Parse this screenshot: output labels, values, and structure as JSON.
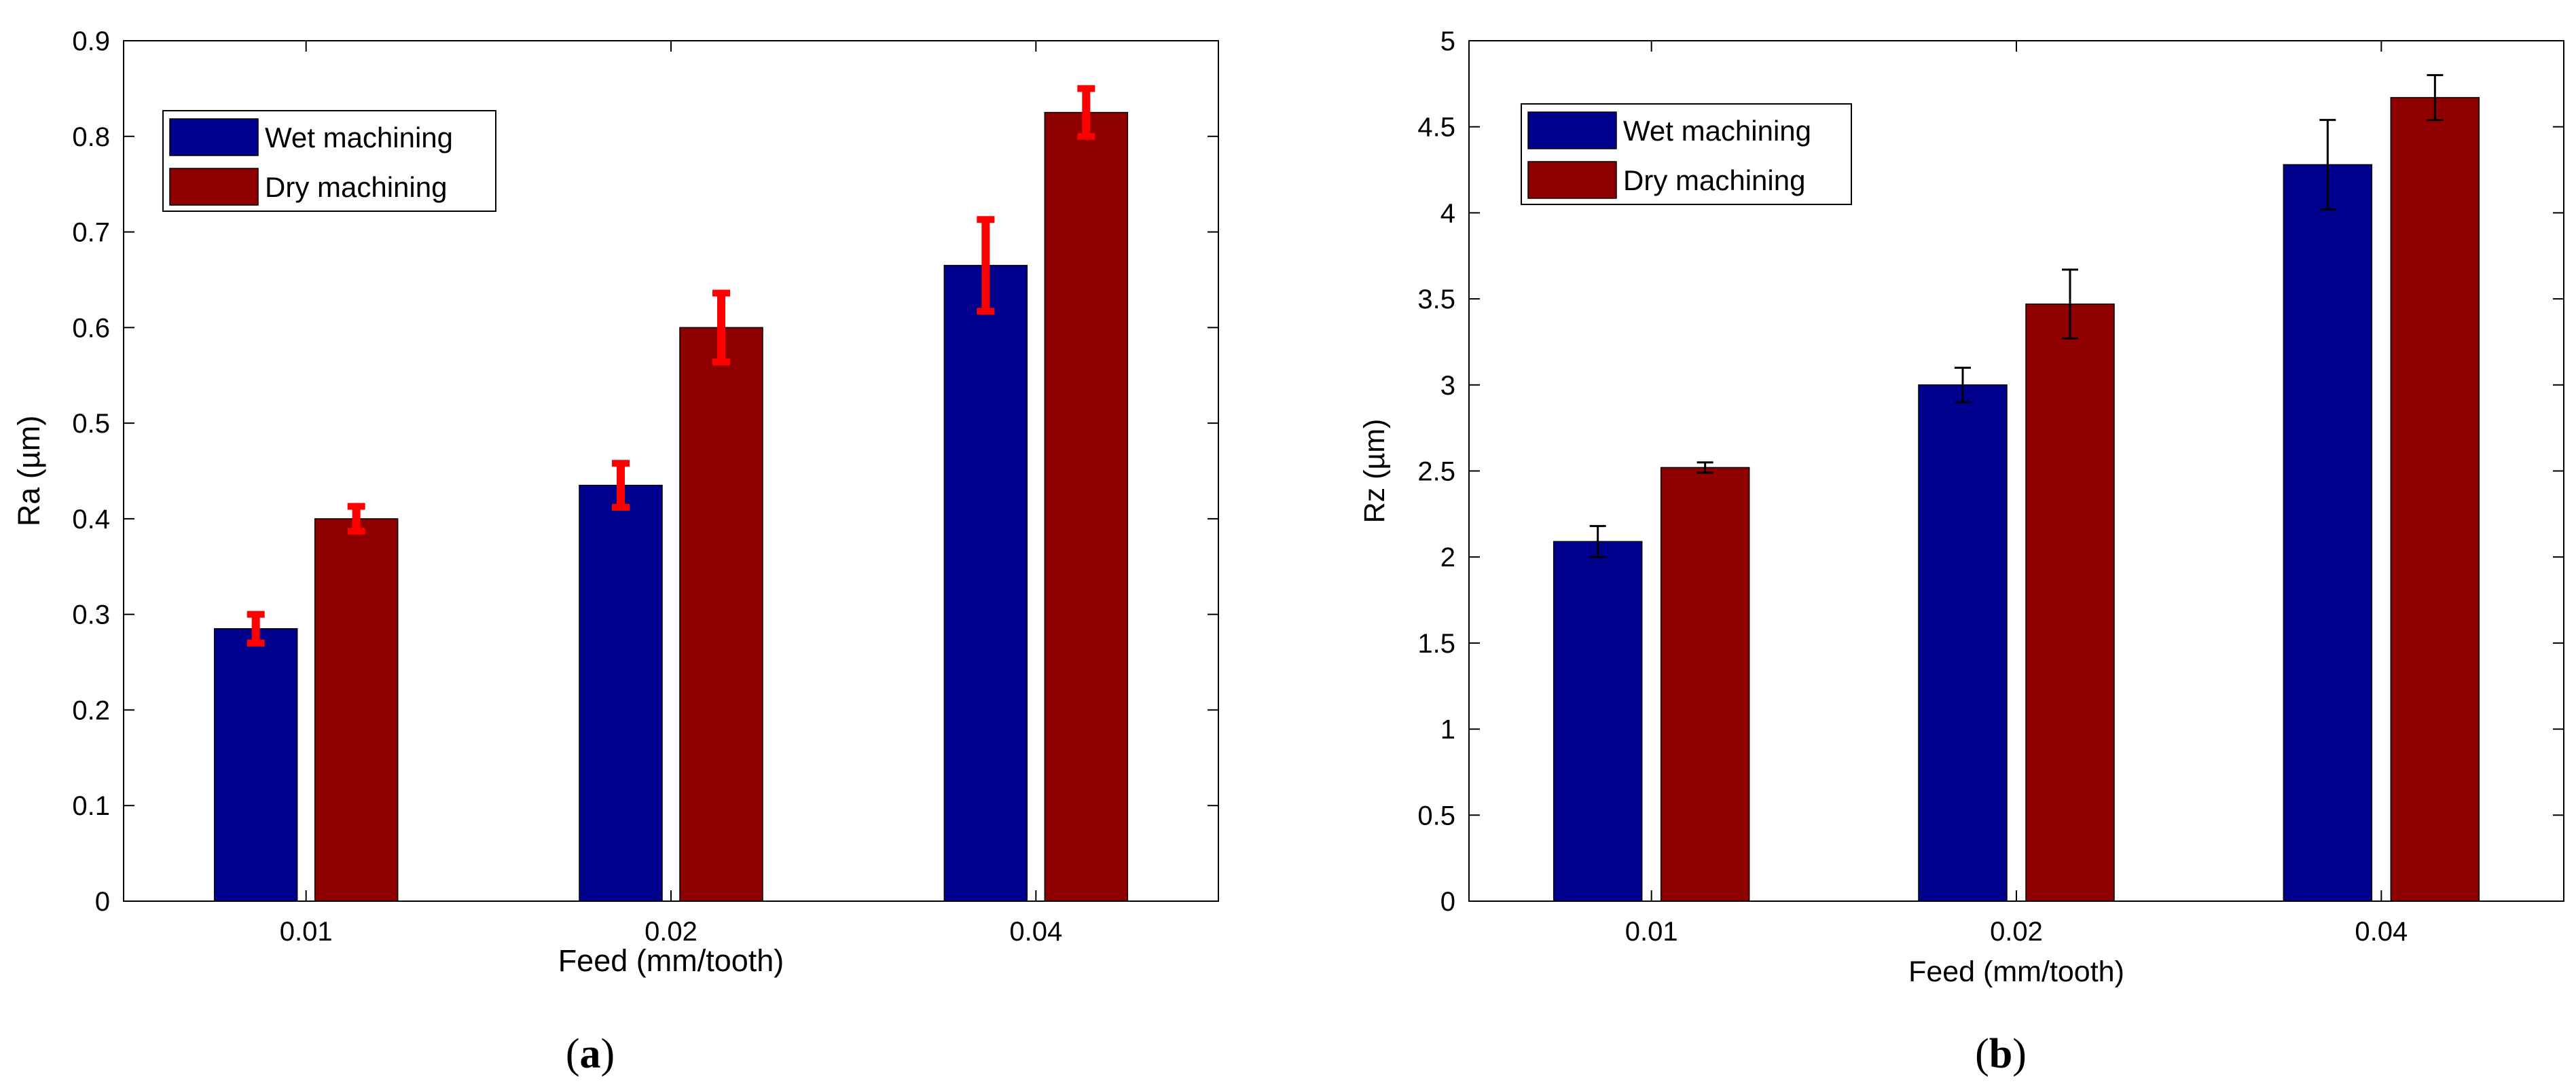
{
  "chart_data": [
    {
      "type": "bar",
      "panel_label": "(a)",
      "panel_label_letter": "a",
      "title": "",
      "xlabel": "Feed (mm/tooth)",
      "ylabel": "Ra (µm)",
      "categories": [
        "0.01",
        "0.02",
        "0.04"
      ],
      "ylim": [
        0,
        0.9
      ],
      "yticks": [
        0,
        0.1,
        0.2,
        0.3,
        0.4,
        0.5,
        0.6,
        0.7,
        0.8,
        0.9
      ],
      "ytick_labels": [
        "0",
        "0.1",
        "0.2",
        "0.3",
        "0.4",
        "0.5",
        "0.6",
        "0.7",
        "0.8",
        "0.9"
      ],
      "error_bar_color": "#ff0000",
      "legend_position": "top-left",
      "series": [
        {
          "name": "Wet machining",
          "color": "#00008f",
          "values": [
            0.285,
            0.435,
            0.665
          ],
          "errors": [
            0.015,
            0.023,
            0.048
          ]
        },
        {
          "name": "Dry machining",
          "color": "#8f0000",
          "values": [
            0.4,
            0.6,
            0.825
          ],
          "errors": [
            0.013,
            0.036,
            0.025
          ]
        }
      ]
    },
    {
      "type": "bar",
      "panel_label": "(b)",
      "panel_label_letter": "b",
      "title": "",
      "xlabel": "Feed (mm/tooth)",
      "ylabel": "Rz (µm)",
      "categories": [
        "0.01",
        "0.02",
        "0.04"
      ],
      "ylim": [
        0,
        5
      ],
      "yticks": [
        0,
        0.5,
        1,
        1.5,
        2,
        2.5,
        3,
        3.5,
        4,
        4.5,
        5
      ],
      "ytick_labels": [
        "0",
        "0.5",
        "1",
        "1.5",
        "2",
        "2.5",
        "3",
        "3.5",
        "4",
        "4.5",
        "5"
      ],
      "error_bar_color": "#000000",
      "legend_position": "top-left",
      "series": [
        {
          "name": "Wet machining",
          "color": "#00008f",
          "values": [
            2.09,
            3.0,
            4.28
          ],
          "errors": [
            0.09,
            0.1,
            0.26
          ]
        },
        {
          "name": "Dry machining",
          "color": "#8f0000",
          "values": [
            2.52,
            3.47,
            4.67
          ],
          "errors": [
            0.03,
            0.2,
            0.13
          ]
        }
      ]
    }
  ]
}
